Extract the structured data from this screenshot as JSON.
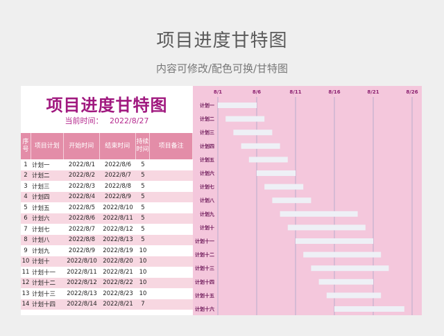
{
  "header": {
    "title": "项目进度甘特图",
    "subtitle": "内容可修改/配色可换/甘特图"
  },
  "sheet": {
    "title": "项目进度甘特图",
    "current_time_label": "当前时间：",
    "current_time_value": "2022/8/27",
    "columns": {
      "no": "序号",
      "name": "项目计划",
      "start": "开始时间",
      "end": "结束时间",
      "duration": "持续时间",
      "note": "项目备注"
    },
    "rows": [
      {
        "no": "1",
        "name": "计划一",
        "start": "2022/8/1",
        "end": "2022/8/6",
        "duration": "5"
      },
      {
        "no": "2",
        "name": "计划二",
        "start": "2022/8/2",
        "end": "2022/8/7",
        "duration": "5"
      },
      {
        "no": "3",
        "name": "计划三",
        "start": "2022/8/3",
        "end": "2022/8/8",
        "duration": "5"
      },
      {
        "no": "4",
        "name": "计划四",
        "start": "2022/8/4",
        "end": "2022/8/9",
        "duration": "5"
      },
      {
        "no": "5",
        "name": "计划五",
        "start": "2022/8/5",
        "end": "2022/8/10",
        "duration": "5"
      },
      {
        "no": "6",
        "name": "计划六",
        "start": "2022/8/6",
        "end": "2022/8/11",
        "duration": "5"
      },
      {
        "no": "7",
        "name": "计划七",
        "start": "2022/8/7",
        "end": "2022/8/12",
        "duration": "5"
      },
      {
        "no": "8",
        "name": "计划八",
        "start": "2022/8/8",
        "end": "2022/8/13",
        "duration": "5"
      },
      {
        "no": "9",
        "name": "计划九",
        "start": "2022/8/9",
        "end": "2022/8/19",
        "duration": "10"
      },
      {
        "no": "10",
        "name": "计划十",
        "start": "2022/8/10",
        "end": "2022/8/20",
        "duration": "10"
      },
      {
        "no": "11",
        "name": "计划十一",
        "start": "2022/8/11",
        "end": "2022/8/21",
        "duration": "10"
      },
      {
        "no": "12",
        "name": "计划十二",
        "start": "2022/8/12",
        "end": "2022/8/22",
        "duration": "10"
      },
      {
        "no": "13",
        "name": "计划十三",
        "start": "2022/8/13",
        "end": "2022/8/23",
        "duration": "10"
      },
      {
        "no": "14",
        "name": "计划十四",
        "start": "2022/8/14",
        "end": "2022/8/21",
        "duration": "7"
      }
    ]
  },
  "colors": {
    "accent": "#a0197f",
    "header_bg": "#e38da8",
    "row_alt": "#f7d7e1",
    "chart_bg": "#f4c7dc",
    "bar": "#eef0f6",
    "gridline": "#a9a6c9"
  },
  "chart_data": {
    "type": "gantt",
    "x_ticks": [
      "8/1",
      "8/6",
      "8/11",
      "8/16",
      "8/21",
      "8/26"
    ],
    "x_range": [
      "2022-08-01",
      "2022-08-26"
    ],
    "tasks": [
      {
        "name": "计划一",
        "start": "2022-08-01",
        "end": "2022-08-06"
      },
      {
        "name": "计划二",
        "start": "2022-08-02",
        "end": "2022-08-07"
      },
      {
        "name": "计划三",
        "start": "2022-08-03",
        "end": "2022-08-08"
      },
      {
        "name": "计划四",
        "start": "2022-08-04",
        "end": "2022-08-09"
      },
      {
        "name": "计划五",
        "start": "2022-08-05",
        "end": "2022-08-10"
      },
      {
        "name": "计划六",
        "start": "2022-08-06",
        "end": "2022-08-11"
      },
      {
        "name": "计划七",
        "start": "2022-08-07",
        "end": "2022-08-12"
      },
      {
        "name": "计划八",
        "start": "2022-08-08",
        "end": "2022-08-13"
      },
      {
        "name": "计划九",
        "start": "2022-08-09",
        "end": "2022-08-19"
      },
      {
        "name": "计划十",
        "start": "2022-08-10",
        "end": "2022-08-20"
      },
      {
        "name": "计划十一",
        "start": "2022-08-11",
        "end": "2022-08-21"
      },
      {
        "name": "计划十二",
        "start": "2022-08-12",
        "end": "2022-08-22"
      },
      {
        "name": "计划十三",
        "start": "2022-08-13",
        "end": "2022-08-23"
      },
      {
        "name": "计划十四",
        "start": "2022-08-14",
        "end": "2022-08-21"
      },
      {
        "name": "计划十五",
        "start": "2022-08-15",
        "end": "2022-08-22"
      },
      {
        "name": "计划十六",
        "start": "2022-08-16",
        "end": "2022-08-25"
      }
    ]
  }
}
